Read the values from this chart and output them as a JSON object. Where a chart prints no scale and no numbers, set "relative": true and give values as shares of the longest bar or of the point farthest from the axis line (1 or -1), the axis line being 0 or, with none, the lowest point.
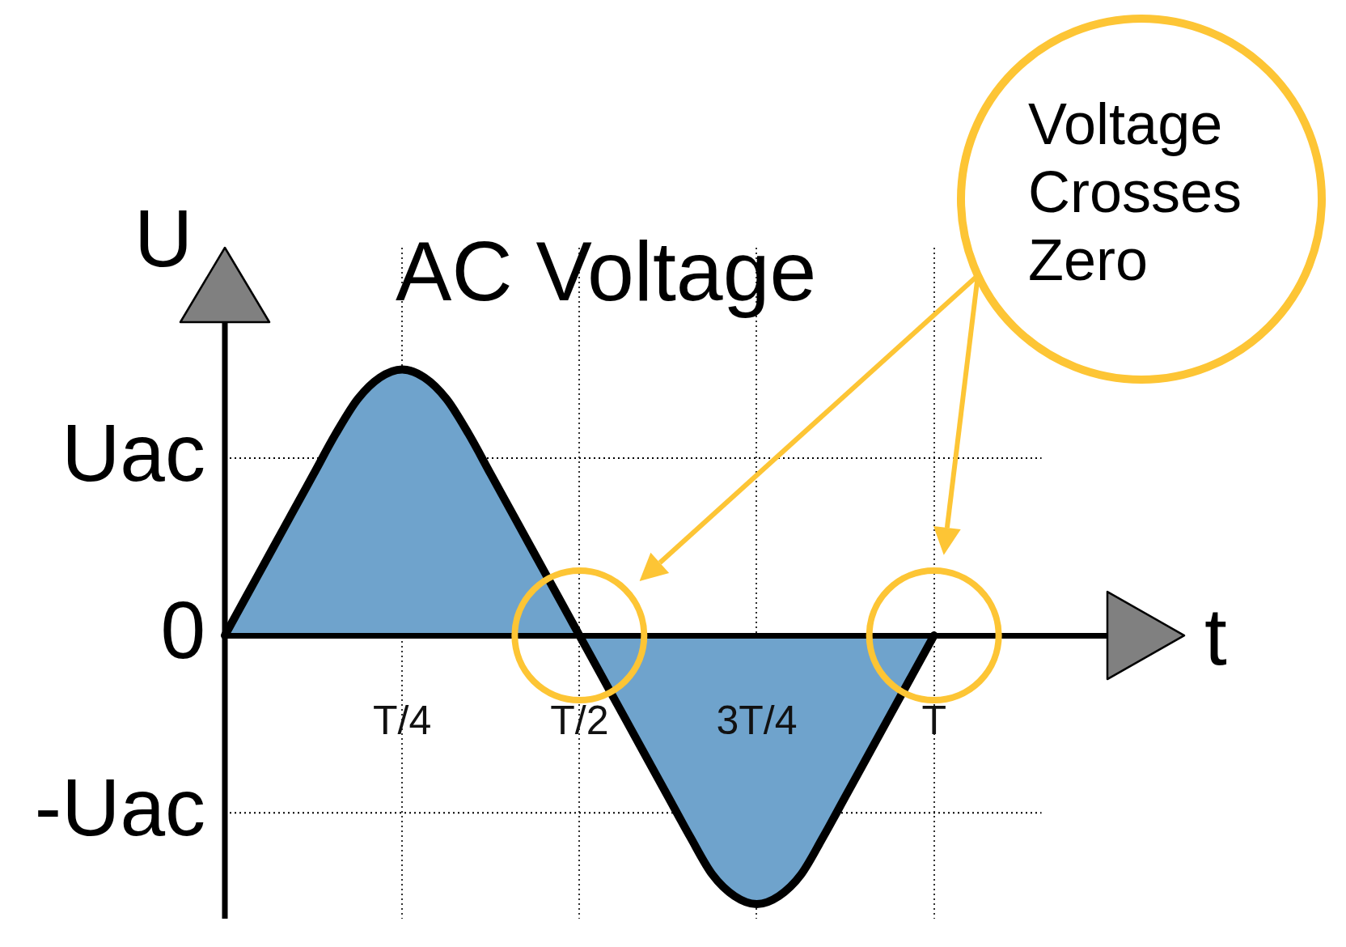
{
  "chart_data": {
    "type": "area",
    "title": "AC Voltage",
    "xlabel": "t",
    "ylabel": "U",
    "relative": true,
    "categories": [
      null,
      null,
      null,
      null,
      null,
      null,
      null,
      null,
      "T/4",
      null,
      null,
      null,
      null,
      null,
      null,
      null,
      "T/2",
      null,
      null,
      null,
      null,
      null,
      null,
      null,
      "3T/4",
      null,
      null,
      null,
      null,
      null,
      null,
      null,
      "T",
      null,
      null,
      null,
      null,
      null,
      null,
      null,
      null,
      null,
      null,
      null
    ],
    "values": [
      0,
      0.15,
      0.3,
      0.45,
      0.6,
      0.75,
      0.88,
      0.96,
      0.99,
      0.96,
      0.88,
      0.75,
      0.6,
      0.45,
      0.3,
      0.15,
      0,
      -0.15,
      -0.3,
      -0.45,
      -0.6,
      -0.75,
      -0.89,
      -0.97,
      -1,
      -0.97,
      -0.89,
      -0.75,
      -0.6,
      -0.45,
      -0.3,
      -0.15,
      0,
      null,
      null,
      null,
      null,
      null,
      null,
      null,
      null,
      null,
      null,
      null
    ],
    "color": "#6fa3cc",
    "grid": "x",
    "ref_lines": [
      {
        "axis": "y",
        "value": 0.66,
        "label": "Uac",
        "line_style": "dotted",
        "color": "#000000"
      },
      {
        "axis": "y",
        "value": -0.66,
        "label": "-Uac",
        "line_style": "dotted",
        "color": "#000000"
      }
    ],
    "annotations": [
      "0",
      "Voltage Crosses Zero"
    ]
  }
}
